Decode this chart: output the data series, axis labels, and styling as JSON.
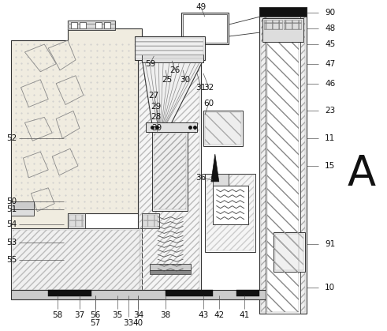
{
  "bg_color": "#ffffff",
  "lc": "#333333",
  "fig_w": 4.91,
  "fig_h": 4.19,
  "dpi": 100
}
